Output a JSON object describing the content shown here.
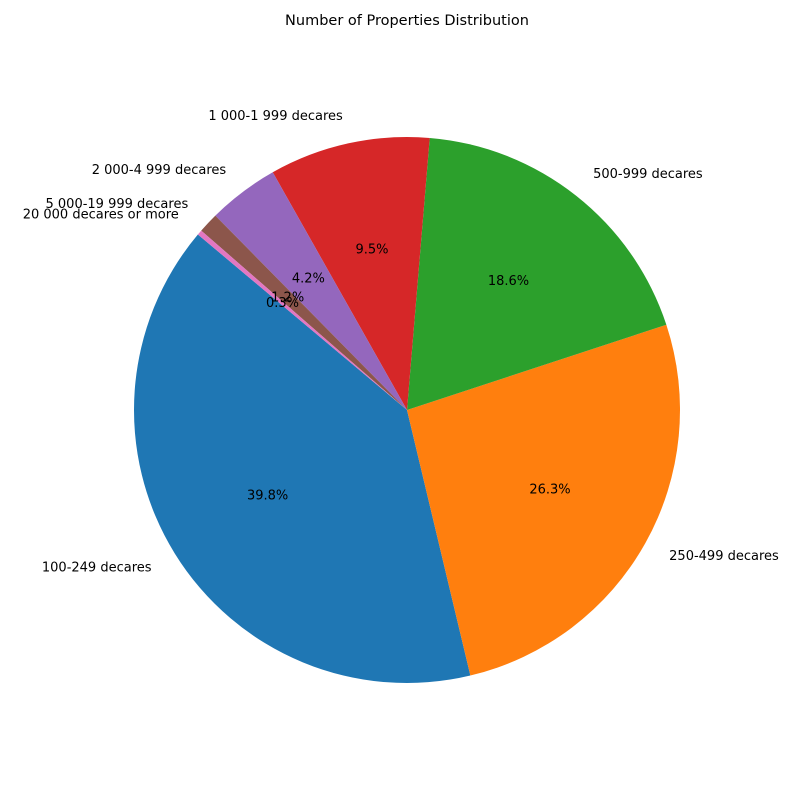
{
  "chart_data": {
    "type": "pie",
    "title": "Number of Properties Distribution",
    "autopct_format": "{:.1f}%",
    "start_angle_deg": 140,
    "direction": "counterclockwise",
    "slices": [
      {
        "label": "100-249 decares",
        "value": 39.8,
        "color": "#1f77b4"
      },
      {
        "label": "250-499 decares",
        "value": 26.3,
        "color": "#ff7f0e"
      },
      {
        "label": "500-999 decares",
        "value": 18.6,
        "color": "#2ca02c"
      },
      {
        "label": "1 000-1 999 decares",
        "value": 9.5,
        "color": "#d62728"
      },
      {
        "label": "2 000-4 999 decares",
        "value": 4.2,
        "color": "#9467bd"
      },
      {
        "label": "5 000-19 999 decares",
        "value": 1.2,
        "color": "#8c564b"
      },
      {
        "label": "20 000 decares or more",
        "value": 0.3,
        "color": "#e377c2"
      }
    ]
  }
}
